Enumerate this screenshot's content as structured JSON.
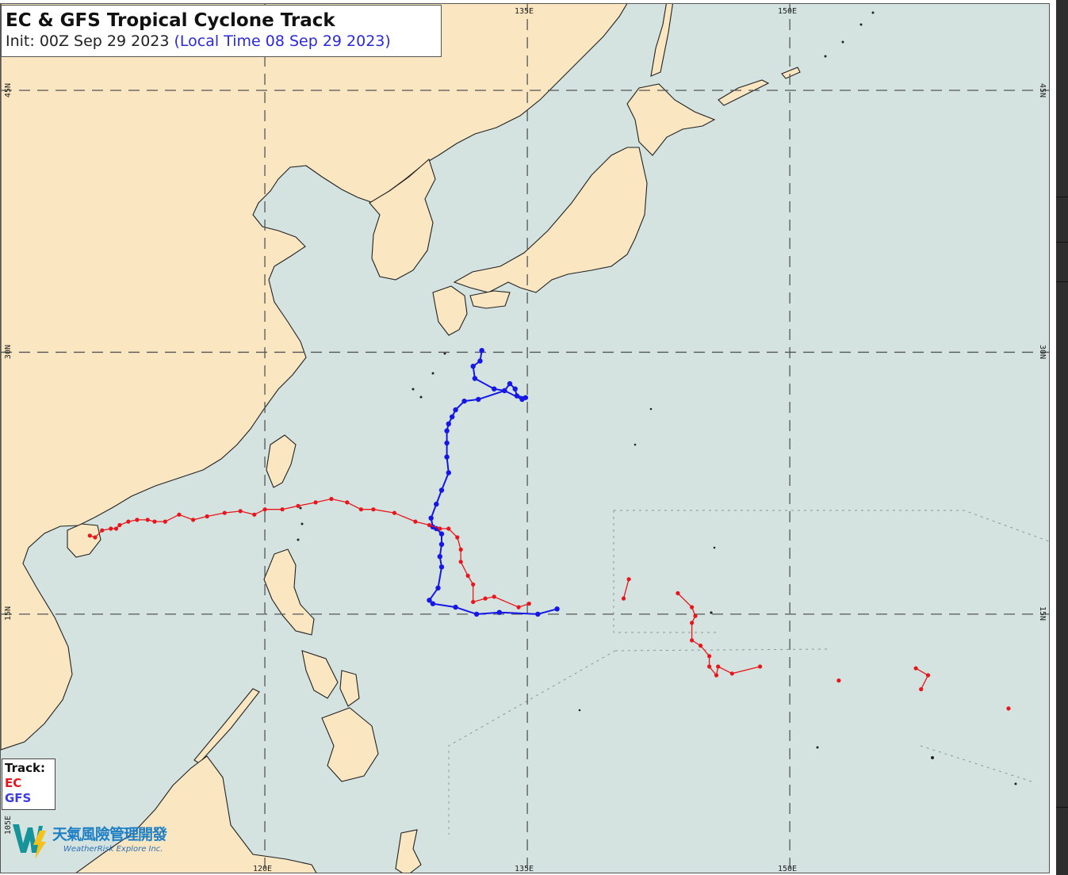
{
  "title": {
    "main": "EC & GFS Tropical Cyclone Track",
    "init": "Init: 00Z Sep 29 2023",
    "local": "(Local Time 08 Sep 29 2023)"
  },
  "legend": {
    "heading": "Track:",
    "items": [
      {
        "label": "EC",
        "color": "#e8161c"
      },
      {
        "label": "GFS",
        "color": "#1616e6"
      }
    ]
  },
  "axes": {
    "top_ticks": [
      "135E",
      "150E"
    ],
    "bottom_ticks": [
      "120E",
      "135E",
      "150E"
    ],
    "left_ticks": [
      "45N",
      "30N",
      "15N",
      "105E"
    ],
    "right_ticks": [
      "45N",
      "30N",
      "15N"
    ]
  },
  "logo": {
    "chinese": "天氣風險管理開發",
    "english": "WeatherRisk Explore Inc."
  },
  "colors": {
    "water": "#d4e3e0",
    "land": "#fae6c1",
    "grid": "#555555"
  },
  "map_data": {
    "type": "map-tracks",
    "grid_lons": [
      120,
      135,
      150
    ],
    "grid_lats": [
      15,
      30,
      45
    ],
    "tracks": [
      {
        "model": "GFS",
        "color": "#1616e6",
        "points": [
          [
            136.7,
            15.3
          ],
          [
            135.6,
            15.0
          ],
          [
            133.4,
            15.1
          ],
          [
            132.1,
            15.0
          ],
          [
            130.9,
            15.4
          ],
          [
            129.6,
            15.6
          ],
          [
            129.4,
            15.8
          ],
          [
            129.9,
            16.5
          ],
          [
            130.1,
            17.7
          ],
          [
            130.0,
            18.3
          ],
          [
            130.1,
            19.0
          ],
          [
            130.1,
            19.6
          ],
          [
            129.8,
            19.9
          ],
          [
            129.6,
            20.0
          ],
          [
            129.5,
            20.5
          ],
          [
            129.8,
            21.3
          ],
          [
            130.1,
            22.1
          ],
          [
            130.5,
            23.1
          ],
          [
            130.4,
            24.0
          ],
          [
            130.4,
            24.8
          ],
          [
            130.4,
            25.5
          ],
          [
            130.5,
            25.9
          ],
          [
            130.7,
            26.3
          ],
          [
            130.9,
            26.7
          ],
          [
            131.4,
            27.2
          ],
          [
            132.2,
            27.3
          ],
          [
            133.7,
            27.8
          ],
          [
            134.0,
            28.2
          ],
          [
            134.3,
            27.9
          ],
          [
            134.4,
            27.5
          ],
          [
            134.9,
            27.4
          ],
          [
            134.7,
            27.3
          ],
          [
            133.7,
            27.8
          ],
          [
            133.1,
            27.9
          ],
          [
            132.0,
            28.5
          ],
          [
            131.9,
            29.2
          ],
          [
            132.3,
            29.5
          ],
          [
            132.4,
            30.1
          ]
        ]
      },
      {
        "model": "EC",
        "color": "#e8161c",
        "points": [
          [
            135.1,
            15.6
          ],
          [
            134.5,
            15.4
          ],
          [
            133.1,
            16.0
          ],
          [
            132.6,
            15.9
          ],
          [
            131.9,
            15.7
          ],
          [
            131.9,
            16.7
          ],
          [
            131.6,
            17.2
          ],
          [
            131.2,
            18.0
          ],
          [
            131.2,
            18.7
          ],
          [
            131.0,
            19.4
          ],
          [
            130.5,
            19.9
          ],
          [
            130.0,
            19.9
          ],
          [
            129.4,
            20.1
          ],
          [
            128.6,
            20.3
          ],
          [
            127.4,
            20.8
          ],
          [
            126.2,
            21.0
          ],
          [
            125.5,
            21.0
          ],
          [
            124.7,
            21.4
          ],
          [
            123.8,
            21.6
          ],
          [
            122.9,
            21.4
          ],
          [
            121.9,
            21.2
          ],
          [
            121.0,
            21.0
          ],
          [
            120.0,
            21.0
          ],
          [
            119.4,
            20.7
          ],
          [
            118.6,
            20.9
          ],
          [
            117.7,
            20.8
          ],
          [
            116.7,
            20.6
          ],
          [
            115.9,
            20.4
          ],
          [
            115.1,
            20.7
          ],
          [
            114.3,
            20.3
          ],
          [
            113.7,
            20.3
          ],
          [
            113.3,
            20.4
          ],
          [
            112.7,
            20.4
          ],
          [
            112.2,
            20.3
          ],
          [
            111.7,
            20.1
          ],
          [
            111.5,
            19.9
          ],
          [
            111.2,
            19.9
          ],
          [
            110.7,
            19.8
          ],
          [
            110.3,
            19.4
          ],
          [
            110.0,
            19.5
          ]
        ]
      },
      {
        "model": "EC",
        "color": "#e8161c",
        "points": [
          [
            140.8,
            17.0
          ],
          [
            140.5,
            15.9
          ]
        ]
      },
      {
        "model": "EC",
        "color": "#e8161c",
        "points": [
          [
            148.3,
            12.0
          ],
          [
            146.7,
            11.6
          ],
          [
            145.9,
            12.0
          ],
          [
            145.8,
            11.5
          ],
          [
            145.4,
            12.0
          ],
          [
            145.4,
            12.6
          ],
          [
            144.9,
            13.2
          ],
          [
            144.4,
            13.5
          ],
          [
            144.4,
            14.5
          ],
          [
            144.6,
            14.9
          ],
          [
            144.4,
            15.4
          ],
          [
            143.6,
            16.2
          ]
        ]
      },
      {
        "model": "EC",
        "color": "#e8161c",
        "points": [
          [
            152.8,
            11.2
          ]
        ]
      },
      {
        "model": "EC",
        "color": "#e8161c",
        "points": [
          [
            157.2,
            11.9
          ],
          [
            157.9,
            11.5
          ],
          [
            157.5,
            10.7
          ]
        ]
      },
      {
        "model": "EC",
        "color": "#e8161c",
        "points": [
          [
            162.5,
            9.6
          ]
        ]
      }
    ]
  }
}
